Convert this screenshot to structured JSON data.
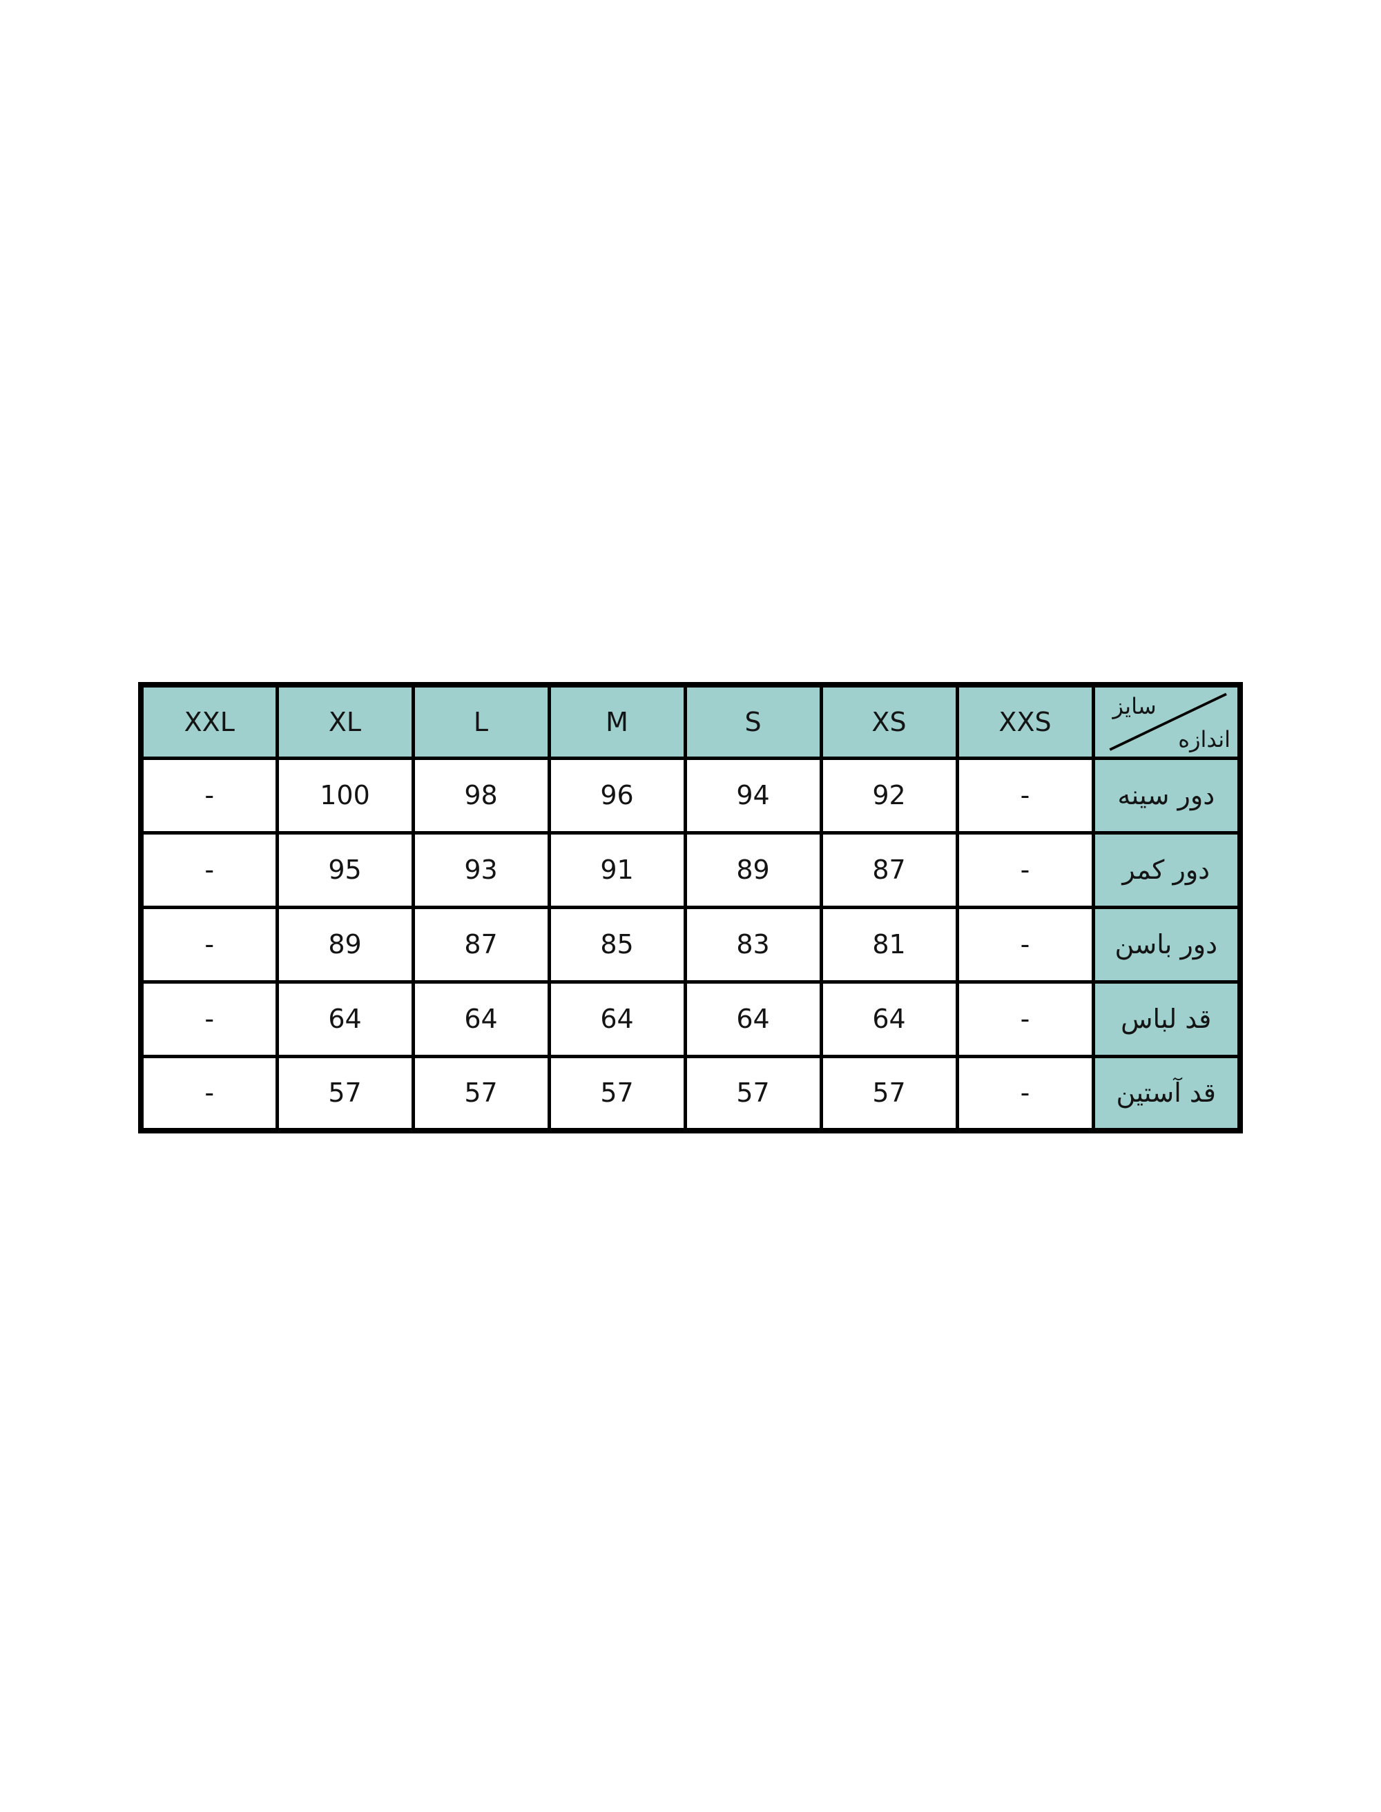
{
  "colors": {
    "header_bg": "#9fd0cd",
    "border": "#000000",
    "cell_bg": "#ffffff",
    "text": "#141414",
    "page_bg": "#ffffff"
  },
  "chart_data": {
    "type": "table",
    "corner": {
      "top_label": "سایز",
      "bottom_label": "اندازه"
    },
    "columns_ltr": [
      "XXL",
      "XL",
      "L",
      "M",
      "S",
      "XS",
      "XXS"
    ],
    "rows": [
      {
        "label": "دور سینه",
        "values_ltr": [
          "-",
          "100",
          "98",
          "96",
          "94",
          "92",
          "-"
        ]
      },
      {
        "label": "دور کمر",
        "values_ltr": [
          "-",
          "95",
          "93",
          "91",
          "89",
          "87",
          "-"
        ]
      },
      {
        "label": "دور باسن",
        "values_ltr": [
          "-",
          "89",
          "87",
          "85",
          "83",
          "81",
          "-"
        ]
      },
      {
        "label": "قد لباس",
        "values_ltr": [
          "-",
          "64",
          "64",
          "64",
          "64",
          "64",
          "-"
        ]
      },
      {
        "label": "قد آستین",
        "values_ltr": [
          "-",
          "57",
          "57",
          "57",
          "57",
          "57",
          "-"
        ]
      }
    ]
  }
}
